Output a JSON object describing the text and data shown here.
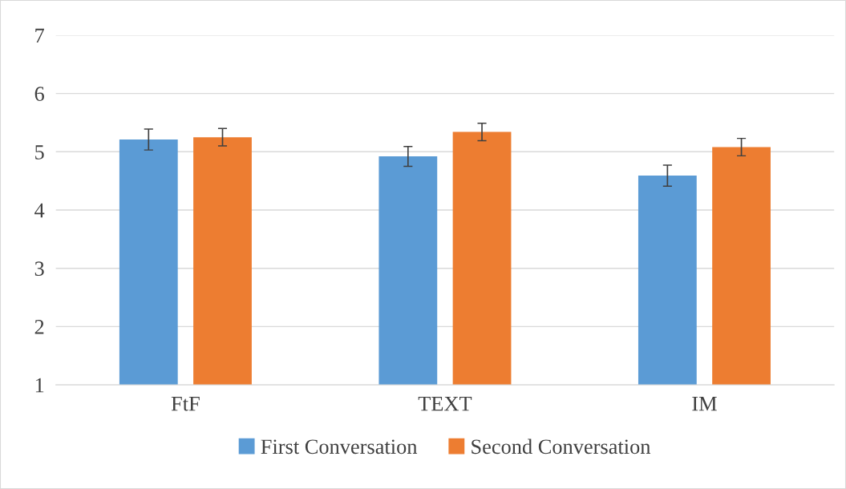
{
  "chart_data": {
    "type": "bar",
    "categories": [
      "FtF",
      "TEXT",
      "IM"
    ],
    "series": [
      {
        "name": "First Conversation",
        "color": "#5b9bd5",
        "values": [
          5.21,
          4.92,
          4.59
        ],
        "errors": [
          0.18,
          0.17,
          0.18
        ]
      },
      {
        "name": "Second Conversation",
        "color": "#ed7d31",
        "values": [
          5.25,
          5.34,
          5.08
        ],
        "errors": [
          0.15,
          0.15,
          0.15
        ]
      }
    ],
    "ylim": [
      1,
      7
    ],
    "yticks": [
      1,
      2,
      3,
      4,
      5,
      6,
      7
    ],
    "grid": "y",
    "legend": "bottom"
  }
}
